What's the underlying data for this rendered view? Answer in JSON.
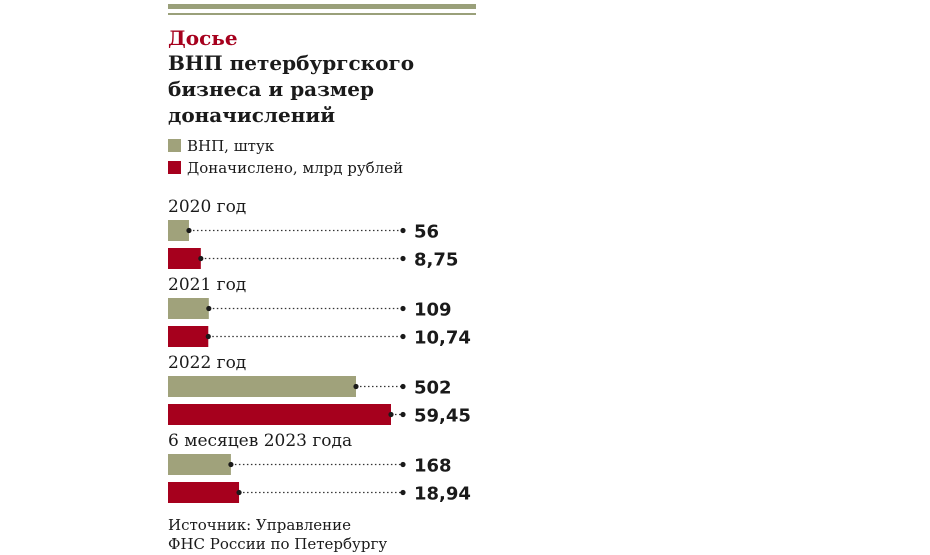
{
  "rubric": "Досье",
  "title_lines": [
    "ВНП петербургского",
    "бизнеса и размер",
    "доначислений"
  ],
  "colors": {
    "vnp": "#a0a27b",
    "charges": "#a6001d",
    "rule": "#9aa07a",
    "text": "#1a1a1a"
  },
  "chart_data": {
    "type": "bar",
    "orientation": "horizontal",
    "categories": [
      "2020 год",
      "2021 год",
      "2022 год",
      "6 месяцев 2023 года"
    ],
    "series": [
      {
        "name": "ВНП, штук",
        "values": [
          56,
          109,
          502,
          168
        ],
        "labels": [
          "56",
          "109",
          "502",
          "168"
        ],
        "color": "#a0a27b"
      },
      {
        "name": "Доначислено, млрд рублей",
        "values": [
          8.75,
          10.74,
          59.45,
          18.94
        ],
        "labels": [
          "8,75",
          "10,74",
          "59,45",
          "18,94"
        ],
        "color": "#a6001d"
      }
    ],
    "legend": "top-left",
    "grid": false
  },
  "source_lines": [
    "Источник: Управление",
    "ФНС России по Петербургу"
  ]
}
